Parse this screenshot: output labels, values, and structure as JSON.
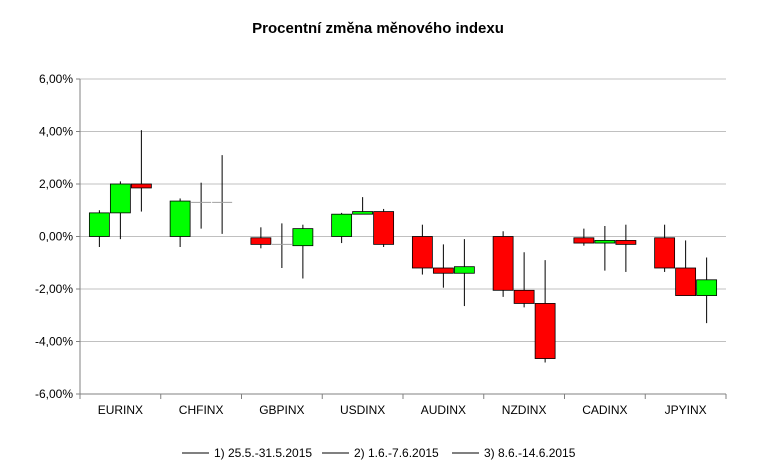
{
  "chart_data": {
    "type": "candlestick",
    "title": "Procentní změna měnového indexu",
    "xlabel": "",
    "ylabel": "",
    "ylim": [
      -6,
      6
    ],
    "yticks": [
      -6,
      -4,
      -2,
      0,
      2,
      4,
      6
    ],
    "ytick_labels": [
      "-6,00%",
      "-4,00%",
      "-2,00%",
      "0,00%",
      "2,00%",
      "4,00%",
      "6,00%"
    ],
    "grid": true,
    "legend_position": "bottom",
    "categories": [
      "EURINX",
      "CHFINX",
      "GBPINX",
      "USDINX",
      "AUDINX",
      "NZDINX",
      "CADINX",
      "JPYINX"
    ],
    "colors": {
      "up": "#00ff00",
      "down": "#ff0000",
      "wick": "#000000",
      "grid": "#c0c0c0",
      "axis": "#808080"
    },
    "series": [
      {
        "name": "1) 25.5.-31.5.2015",
        "points": [
          {
            "open": 0.0,
            "close": 0.9,
            "high": 1.0,
            "low": -0.4
          },
          {
            "open": 0.0,
            "close": 1.35,
            "high": 1.45,
            "low": -0.4
          },
          {
            "open": -0.05,
            "close": -0.3,
            "high": 0.35,
            "low": -0.45
          },
          {
            "open": 0.0,
            "close": 0.85,
            "high": 0.9,
            "low": -0.25
          },
          {
            "open": 0.0,
            "close": -1.2,
            "high": 0.45,
            "low": -1.45
          },
          {
            "open": 0.0,
            "close": -2.05,
            "high": 0.2,
            "low": -2.3
          },
          {
            "open": -0.05,
            "close": -0.25,
            "high": 0.3,
            "low": -0.35
          },
          {
            "open": -0.05,
            "close": -1.2,
            "high": 0.45,
            "low": -1.35
          }
        ]
      },
      {
        "name": "2) 1.6.-7.6.2015",
        "points": [
          {
            "open": 0.9,
            "close": 2.0,
            "high": 2.1,
            "low": -0.1
          },
          {
            "open": 1.3,
            "close": 1.3,
            "high": 2.05,
            "low": 0.3
          },
          {
            "open": -0.3,
            "close": -0.3,
            "high": 0.5,
            "low": -1.2
          },
          {
            "open": 0.85,
            "close": 0.95,
            "high": 1.5,
            "low": 0.85
          },
          {
            "open": -1.2,
            "close": -1.4,
            "high": -0.3,
            "low": -1.95
          },
          {
            "open": -2.05,
            "close": -2.55,
            "high": -0.6,
            "low": -2.7
          },
          {
            "open": -0.25,
            "close": -0.15,
            "high": 0.4,
            "low": -1.3
          },
          {
            "open": -1.2,
            "close": -2.25,
            "high": -0.15,
            "low": -2.25
          }
        ]
      },
      {
        "name": "3) 8.6.-14.6.2015",
        "points": [
          {
            "open": 2.0,
            "close": 1.85,
            "high": 4.05,
            "low": 0.95
          },
          {
            "open": 1.3,
            "close": 1.3,
            "high": 3.1,
            "low": 0.1
          },
          {
            "open": -0.35,
            "close": 0.3,
            "high": 0.45,
            "low": -1.6
          },
          {
            "open": 0.95,
            "close": -0.3,
            "high": 1.05,
            "low": -0.4
          },
          {
            "open": -1.4,
            "close": -1.15,
            "high": -0.1,
            "low": -2.65
          },
          {
            "open": -2.55,
            "close": -4.65,
            "high": -0.9,
            "low": -4.8
          },
          {
            "open": -0.15,
            "close": -0.3,
            "high": 0.45,
            "low": -1.35
          },
          {
            "open": -2.25,
            "close": -1.65,
            "high": -0.8,
            "low": -3.3
          }
        ]
      }
    ]
  }
}
